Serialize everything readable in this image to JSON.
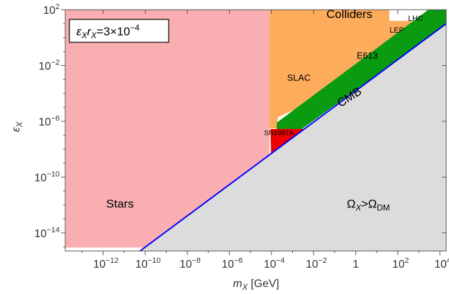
{
  "chart_data": {
    "type": "area",
    "title": "",
    "xlabel": "m_X [GeV]",
    "xlabel_parts": {
      "var": "m",
      "sub": "X",
      "unit": " [GeV]"
    },
    "ylabel": "ε_X",
    "ylabel_parts": {
      "var": "ε",
      "sub": "X"
    },
    "xscale": "log",
    "yscale": "log",
    "xlim_log10": [
      -13.8,
      4.3
    ],
    "ylim_log10": [
      -15.3,
      2
    ],
    "grid": false,
    "x_ticks": [
      {
        "exp": -12,
        "text": "10",
        "sup": "−12"
      },
      {
        "exp": -10,
        "text": "10",
        "sup": "−10"
      },
      {
        "exp": -8,
        "text": "10",
        "sup": "−8"
      },
      {
        "exp": -6,
        "text": "10",
        "sup": "−6"
      },
      {
        "exp": -4,
        "text": "10",
        "sup": "−4"
      },
      {
        "exp": -2,
        "text": "10",
        "sup": "−2"
      },
      {
        "exp": 0,
        "text": "1",
        "sup": ""
      },
      {
        "exp": 2,
        "text": "10",
        "sup": "2"
      },
      {
        "exp": 4,
        "text": "10",
        "sup": "4"
      }
    ],
    "y_ticks": [
      {
        "exp": 2,
        "text": "10",
        "sup": "2"
      },
      {
        "exp": -2,
        "text": "10",
        "sup": "−2"
      },
      {
        "exp": -6,
        "text": "10",
        "sup": "−6"
      },
      {
        "exp": -10,
        "text": "10",
        "sup": "−10"
      },
      {
        "exp": -14,
        "text": "10",
        "sup": "−14"
      }
    ],
    "annotation_box": {
      "text": "ε_X r_X=3×10^−4",
      "parts": [
        "ε",
        "X",
        "r",
        "X",
        "=3×10",
        "−4"
      ]
    },
    "regions": [
      {
        "name": "Stars",
        "label": "Stars",
        "color": "#f9aeb1",
        "label_at": [
          -11.2,
          -12.2
        ],
        "polygon": [
          [
            -13.8,
            2
          ],
          [
            -4.1,
            2
          ],
          [
            -4.1,
            -10.5
          ],
          [
            -9.1,
            -15.05
          ],
          [
            -13.8,
            -15.05
          ]
        ]
      },
      {
        "name": "Colliders",
        "label": "Colliders",
        "color": "#fdac5b",
        "label_at": [
          -0.3,
          1.4
        ],
        "polygon": [
          [
            -4.1,
            2
          ],
          [
            1.6,
            2
          ],
          [
            1.6,
            1.2
          ],
          [
            2.6,
            1.2
          ],
          [
            3.0,
            1.1
          ],
          [
            1.3,
            -1.9
          ],
          [
            -0.6,
            -3.3
          ],
          [
            -2.2,
            -4.7
          ],
          [
            -3.7,
            -5.7
          ],
          [
            -3.75,
            -6.5
          ],
          [
            -4.1,
            -6.5
          ]
        ]
      },
      {
        "name": "SN1987A",
        "label": "SN1987A",
        "color": "#ef0000",
        "label_at": [
          -3.65,
          -7.0
        ],
        "polygon": [
          [
            -4.05,
            -6.55
          ],
          [
            -2.4,
            -6.55
          ],
          [
            -4.1,
            -8.6
          ],
          [
            -4.2,
            -9.5
          ],
          [
            -4.0,
            -10.05
          ]
        ]
      },
      {
        "name": "CMB",
        "label": "CMB",
        "color": "#0a9b10",
        "label_at": [
          -0.2,
          -4.5
        ],
        "polygon": [
          [
            3.1,
            1.6
          ],
          [
            3.45,
            2
          ],
          [
            4.3,
            2
          ],
          [
            4.3,
            0.95
          ],
          [
            -2.55,
            -6.55
          ],
          [
            -3.75,
            -6.55
          ],
          [
            -3.75,
            -6.1
          ]
        ]
      },
      {
        "name": "Relic",
        "label": "Ω_X>Ω_DM",
        "label_parts": [
          "Ω",
          "X",
          ">Ω",
          "DM"
        ],
        "color": "#dcdcdc",
        "label_at": [
          0.6,
          -12.2
        ],
        "polygon": [
          [
            -10.25,
            -15.3
          ],
          [
            4.3,
            1.0
          ],
          [
            4.3,
            -15.3
          ]
        ]
      }
    ],
    "lines": [
      {
        "name": "relic-boundary",
        "color": "#0000ff",
        "points": [
          [
            -10.25,
            -15.3
          ],
          [
            4.3,
            1.0
          ]
        ]
      }
    ],
    "text_labels": [
      {
        "name": "SLAC",
        "text": "SLAC",
        "at": [
          -2.7,
          -3.1
        ]
      },
      {
        "name": "E613",
        "text": "E613",
        "at": [
          0.55,
          -1.5
        ]
      },
      {
        "name": "LEP",
        "text": "LEP",
        "at": [
          1.95,
          0.35
        ]
      },
      {
        "name": "LHC",
        "text": "LHC",
        "at": [
          2.85,
          1.2
        ]
      }
    ]
  }
}
